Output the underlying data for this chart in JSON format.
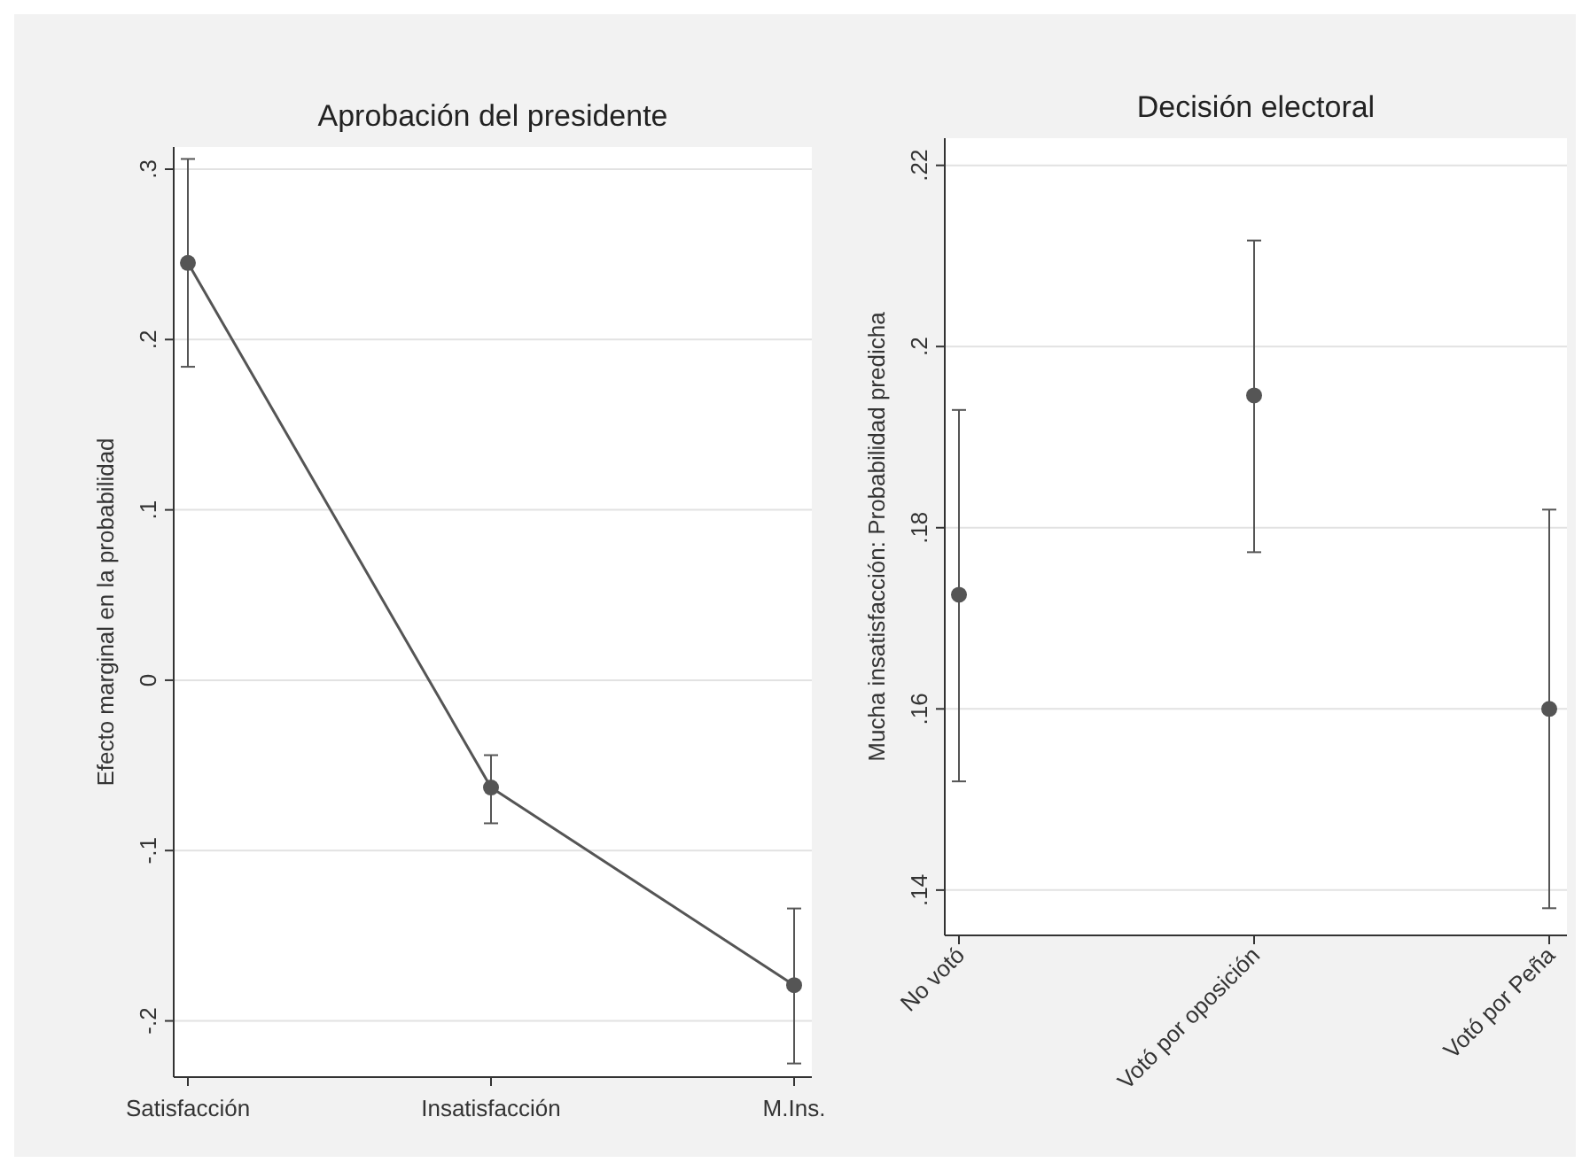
{
  "chart_data": [
    {
      "type": "line",
      "title": "Aprobación del presidente",
      "ylabel": "Efecto marginal en la probabilidad",
      "categories": [
        "Satisfacción",
        "Insatisfacción",
        "M.Ins."
      ],
      "series": [
        {
          "color": "#555555",
          "values": [
            0.245,
            -0.063,
            -0.179
          ],
          "errors": [
            [
              0.184,
              0.306
            ],
            [
              -0.084,
              -0.044
            ],
            [
              -0.225,
              -0.134
            ]
          ]
        }
      ],
      "ylim": [
        -0.233,
        0.313
      ],
      "yticks": [
        {
          "value": -0.2,
          "label": "-.2"
        },
        {
          "value": -0.1,
          "label": "-.1"
        },
        0,
        {
          "value": 0.1,
          "label": ".1"
        },
        {
          "value": 0.2,
          "label": ".2"
        },
        {
          "value": 0.3,
          "label": ".3"
        }
      ],
      "grid": "y",
      "marker": "circle",
      "line_style": "solid"
    },
    {
      "type": "scatter",
      "title": "Decisión electoral",
      "ylabel": "Mucha insatisfacción: Probabilidad predicha",
      "categories": [
        "No votó",
        "Votó por oposición",
        "Votó por Peña"
      ],
      "series": [
        {
          "color": "#555555",
          "values": [
            0.1726,
            0.1946,
            0.16
          ],
          "errors": [
            [
              0.152,
              0.193
            ],
            [
              0.1773,
              0.2117
            ],
            [
              0.138,
              0.182
            ]
          ]
        }
      ],
      "ylim": [
        0.135,
        0.223
      ],
      "yticks": [
        {
          "value": 0.14,
          "label": ".14"
        },
        {
          "value": 0.16,
          "label": ".16"
        },
        {
          "value": 0.18,
          "label": ".18"
        },
        {
          "value": 0.2,
          "label": ".2"
        },
        {
          "value": 0.22,
          "label": ".22"
        }
      ],
      "grid": "y",
      "marker": "circle"
    }
  ]
}
